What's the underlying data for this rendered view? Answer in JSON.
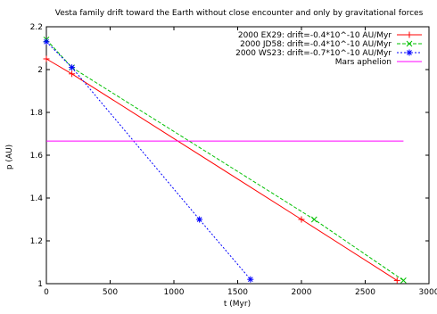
{
  "chart_data": {
    "type": "line",
    "title": "Vesta family drift toward the Earth without  close encounter and only by gravitational forces",
    "xlabel": "t (Myr)",
    "ylabel": "p (AU)",
    "xlim": [
      0,
      3000
    ],
    "ylim": [
      1.0,
      2.2
    ],
    "xticks": [
      0,
      500,
      1000,
      1500,
      2000,
      2500,
      3000
    ],
    "yticks": [
      1,
      1.2,
      1.4,
      1.6,
      1.8,
      2,
      2.2
    ],
    "grid": false,
    "legend_position": "top-right",
    "series": [
      {
        "name": "2000 EX29: drift=-0.4*10^-10 AU/Myr",
        "color": "#ff0000",
        "dash": "solid",
        "marker": "plus",
        "points": [
          [
            0,
            2.05
          ],
          [
            200,
            1.98
          ],
          [
            2000,
            1.3
          ],
          [
            2750,
            1.015
          ]
        ]
      },
      {
        "name": "2000 JD58: drift=-0.4*10^-10 AU/Myr",
        "color": "#00c000",
        "dash": "dashed",
        "marker": "cross",
        "points": [
          [
            0,
            2.14
          ],
          [
            200,
            2.01
          ],
          [
            2100,
            1.3
          ],
          [
            2800,
            1.015
          ]
        ]
      },
      {
        "name": "2000 WS23: drift=-0.7*10^-10 AU/Myr",
        "color": "#0000ff",
        "dash": "dotted",
        "marker": "star",
        "points": [
          [
            0,
            2.13
          ],
          [
            200,
            2.01
          ],
          [
            1200,
            1.3
          ],
          [
            1600,
            1.02
          ]
        ]
      },
      {
        "name": "Mars aphelion",
        "color": "#ff00ff",
        "dash": "solid",
        "marker": "none",
        "points": [
          [
            0,
            1.666
          ],
          [
            2800,
            1.666
          ]
        ]
      }
    ]
  }
}
